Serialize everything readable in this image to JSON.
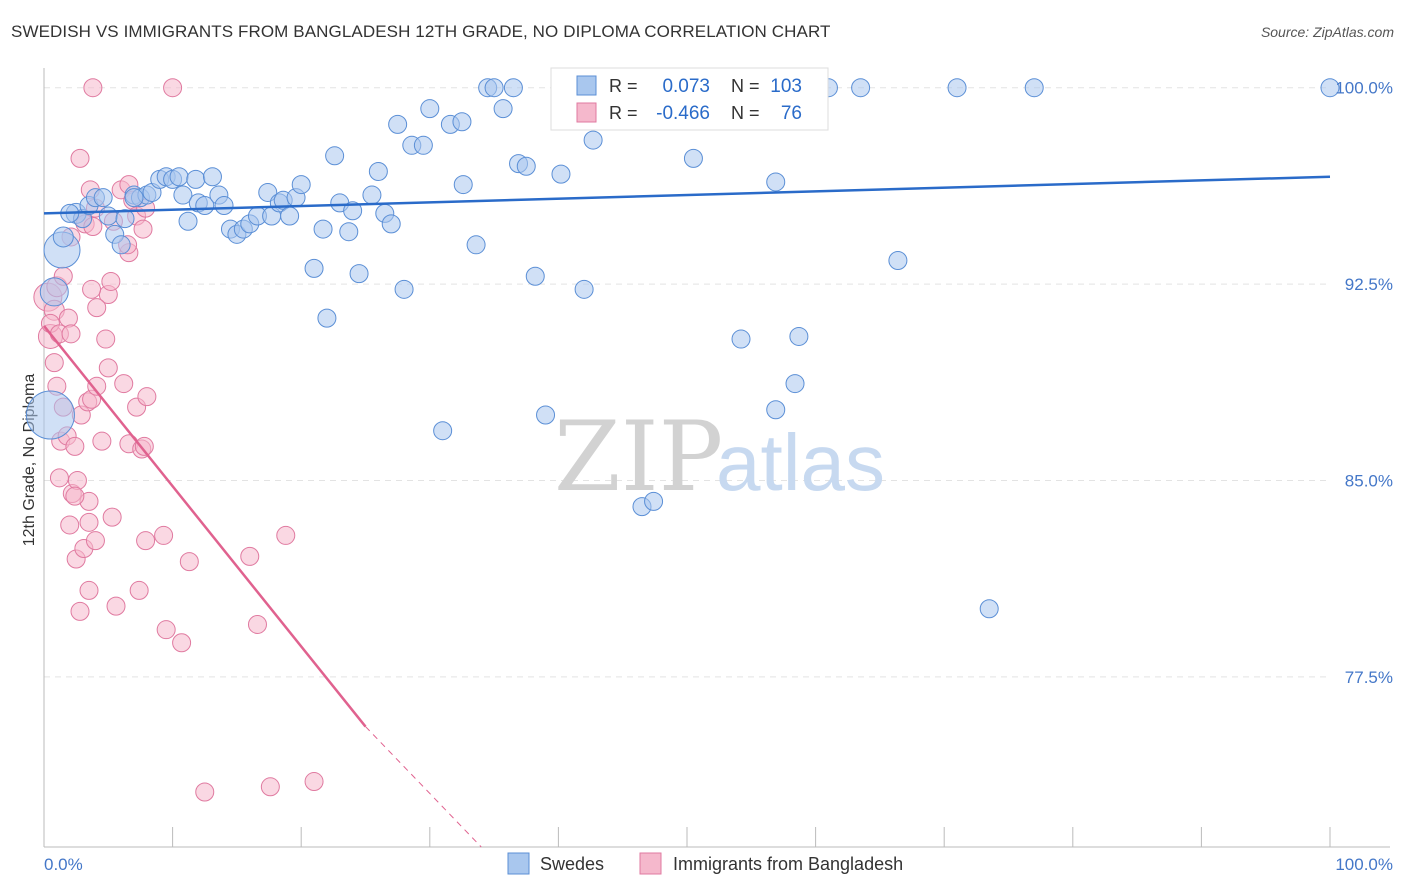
{
  "title": "SWEDISH VS IMMIGRANTS FROM BANGLADESH 12TH GRADE, NO DIPLOMA CORRELATION CHART",
  "source": "Source: ZipAtlas.com",
  "watermark": {
    "zip": "ZIP",
    "atlas": "atlas"
  },
  "colors": {
    "blue": "#5b8fd6",
    "blue_fill": "#a9c7ee",
    "blue_line": "#2a6bc9",
    "pink": "#e07aa0",
    "pink_fill": "#f5b8cc",
    "pink_line": "#e0628f",
    "axis_text": "#4477c8",
    "grid": "#e3e3e3"
  },
  "legend_box": {
    "rows": [
      {
        "r_label": "R =",
        "r_value": "0.073",
        "n_label": "N =",
        "n_value": "103"
      },
      {
        "r_label": "R =",
        "r_value": "-0.466",
        "n_label": "N =",
        "n_value": "76"
      }
    ]
  },
  "legend_bottom": [
    "Swedes",
    "Immigrants from Bangladesh"
  ],
  "chart_data": {
    "type": "scatter",
    "title": "SWEDISH VS IMMIGRANTS FROM BANGLADESH 12TH GRADE, NO DIPLOMA CORRELATION CHART",
    "xlabel": "",
    "ylabel": "12th Grade, No Diploma",
    "xlim": [
      0,
      100
    ],
    "ylim": [
      71.0,
      100.6
    ],
    "x_tick_labels": [
      "0.0%",
      "100.0%"
    ],
    "y_ticks": [
      77.5,
      85.0,
      92.5,
      100.0
    ],
    "y_tick_labels": [
      "77.5%",
      "85.0%",
      "92.5%",
      "100.0%"
    ],
    "grid": true,
    "legend_position": "top-center",
    "series": [
      {
        "name": "Swedes",
        "r": 0.073,
        "n": 103,
        "trend": {
          "x": [
            0,
            100
          ],
          "y": [
            95.2,
            96.6
          ]
        },
        "points": [
          [
            1.4,
            93.8,
            18
          ],
          [
            0.5,
            87.5,
            24
          ],
          [
            0.8,
            92.2,
            14
          ],
          [
            1.5,
            94.3,
            10
          ],
          [
            2.5,
            95.2,
            10
          ],
          [
            3.0,
            95.0,
            9
          ],
          [
            3.5,
            95.5,
            9
          ],
          [
            4.0,
            95.8,
            9
          ],
          [
            4.6,
            95.8,
            9
          ],
          [
            5.0,
            95.1,
            9
          ],
          [
            5.5,
            94.4,
            9
          ],
          [
            6.0,
            94.0,
            9
          ],
          [
            6.3,
            95.0,
            9
          ],
          [
            7.0,
            95.9,
            9
          ],
          [
            7.5,
            95.8,
            9
          ],
          [
            8.0,
            95.9,
            9
          ],
          [
            8.4,
            96.0,
            9
          ],
          [
            9.0,
            96.5,
            9
          ],
          [
            9.5,
            96.6,
            9
          ],
          [
            10.0,
            96.5,
            9
          ],
          [
            10.5,
            96.6,
            9
          ],
          [
            10.8,
            95.9,
            9
          ],
          [
            11.2,
            94.9,
            9
          ],
          [
            11.8,
            96.5,
            9
          ],
          [
            12.0,
            95.6,
            9
          ],
          [
            12.5,
            95.5,
            9
          ],
          [
            13.1,
            96.6,
            9
          ],
          [
            13.6,
            95.9,
            9
          ],
          [
            14.0,
            95.5,
            9
          ],
          [
            14.5,
            94.6,
            9
          ],
          [
            15.0,
            94.4,
            9
          ],
          [
            15.5,
            94.6,
            9
          ],
          [
            16.0,
            94.8,
            9
          ],
          [
            16.6,
            95.1,
            9
          ],
          [
            17.4,
            96.0,
            9
          ],
          [
            17.7,
            95.1,
            9
          ],
          [
            18.3,
            95.6,
            9
          ],
          [
            18.6,
            95.7,
            9
          ],
          [
            19.1,
            95.1,
            9
          ],
          [
            19.6,
            95.8,
            9
          ],
          [
            20.0,
            96.3,
            9
          ],
          [
            21.0,
            93.1,
            9
          ],
          [
            21.7,
            94.6,
            9
          ],
          [
            22.0,
            91.2,
            9
          ],
          [
            22.6,
            97.4,
            9
          ],
          [
            23.0,
            95.6,
            9
          ],
          [
            23.7,
            94.5,
            9
          ],
          [
            24.0,
            95.3,
            9
          ],
          [
            24.5,
            92.9,
            9
          ],
          [
            25.5,
            95.9,
            9
          ],
          [
            26.0,
            96.8,
            9
          ],
          [
            26.5,
            95.2,
            9
          ],
          [
            27.0,
            94.8,
            9
          ],
          [
            27.5,
            98.6,
            9
          ],
          [
            28.0,
            92.3,
            9
          ],
          [
            28.6,
            97.8,
            9
          ],
          [
            29.5,
            97.8,
            9
          ],
          [
            30.0,
            99.2,
            9
          ],
          [
            31.0,
            86.9,
            9
          ],
          [
            31.6,
            98.6,
            9
          ],
          [
            32.5,
            98.7,
            9
          ],
          [
            32.6,
            96.3,
            9
          ],
          [
            33.6,
            94.0,
            9
          ],
          [
            34.5,
            100.0,
            9
          ],
          [
            35.0,
            100.0,
            9
          ],
          [
            35.7,
            99.2,
            9
          ],
          [
            36.5,
            100.0,
            9
          ],
          [
            36.9,
            97.1,
            9
          ],
          [
            37.5,
            97.0,
            9
          ],
          [
            38.2,
            92.8,
            9
          ],
          [
            39.0,
            87.5,
            9
          ],
          [
            40.2,
            96.7,
            9
          ],
          [
            41.0,
            100.0,
            9
          ],
          [
            41.5,
            100.0,
            9
          ],
          [
            42.0,
            92.3,
            9
          ],
          [
            42.7,
            98.0,
            9
          ],
          [
            43.5,
            100.0,
            9
          ],
          [
            45.7,
            100.0,
            9
          ],
          [
            46.5,
            84.0,
            9
          ],
          [
            47.2,
            100.0,
            9
          ],
          [
            47.4,
            84.2,
            9
          ],
          [
            50.0,
            100.0,
            9
          ],
          [
            50.5,
            97.3,
            9
          ],
          [
            53.0,
            100.0,
            9
          ],
          [
            54.2,
            90.4,
            9
          ],
          [
            56.0,
            100.0,
            9
          ],
          [
            56.9,
            87.7,
            9
          ],
          [
            56.9,
            96.4,
            9
          ],
          [
            58.4,
            88.7,
            9
          ],
          [
            58.7,
            90.5,
            9
          ],
          [
            61.0,
            100.0,
            9
          ],
          [
            63.5,
            100.0,
            9
          ],
          [
            66.4,
            93.4,
            9
          ],
          [
            71.0,
            100.0,
            9
          ],
          [
            73.5,
            80.1,
            9
          ],
          [
            77.0,
            100.0,
            9
          ],
          [
            100.0,
            100.0,
            9
          ],
          [
            7.0,
            95.8,
            9
          ],
          [
            2.0,
            95.2,
            9
          ]
        ]
      },
      {
        "name": "Immigrants from Bangladesh",
        "r": -0.466,
        "n": 76,
        "trend": {
          "x": [
            0,
            25
          ],
          "y": [
            90.9,
            75.6
          ]
        },
        "trend_dashed": {
          "x": [
            25,
            34
          ],
          "y": [
            75.6,
            71.0
          ]
        },
        "points": [
          [
            0.3,
            92.0,
            14
          ],
          [
            0.5,
            90.5,
            12
          ],
          [
            0.8,
            91.5,
            10
          ],
          [
            1.0,
            92.4,
            10
          ],
          [
            0.5,
            91.0,
            9
          ],
          [
            1.2,
            90.6,
            9
          ],
          [
            0.8,
            89.5,
            9
          ],
          [
            1.5,
            92.8,
            9
          ],
          [
            1.9,
            91.2,
            9
          ],
          [
            2.1,
            90.6,
            9
          ],
          [
            1.0,
            88.6,
            9
          ],
          [
            1.5,
            87.8,
            9
          ],
          [
            1.3,
            86.5,
            9
          ],
          [
            1.8,
            86.7,
            9
          ],
          [
            1.2,
            85.1,
            9
          ],
          [
            2.4,
            86.3,
            9
          ],
          [
            2.2,
            84.5,
            9
          ],
          [
            2.6,
            85.0,
            9
          ],
          [
            2.0,
            83.3,
            9
          ],
          [
            2.5,
            82.0,
            9
          ],
          [
            3.1,
            82.4,
            9
          ],
          [
            3.5,
            83.4,
            9
          ],
          [
            3.5,
            84.2,
            9
          ],
          [
            4.0,
            82.7,
            9
          ],
          [
            3.5,
            80.8,
            9
          ],
          [
            2.8,
            80.0,
            9
          ],
          [
            2.4,
            84.4,
            9
          ],
          [
            2.9,
            87.5,
            9
          ],
          [
            3.4,
            88.0,
            9
          ],
          [
            3.7,
            88.1,
            9
          ],
          [
            4.1,
            88.6,
            9
          ],
          [
            4.5,
            86.5,
            9
          ],
          [
            5.0,
            89.3,
            9
          ],
          [
            5.3,
            83.6,
            9
          ],
          [
            5.6,
            80.2,
            9
          ],
          [
            6.2,
            88.7,
            9
          ],
          [
            6.6,
            86.4,
            9
          ],
          [
            7.2,
            87.8,
            9
          ],
          [
            7.6,
            86.2,
            9
          ],
          [
            7.9,
            82.7,
            9
          ],
          [
            7.4,
            80.8,
            9
          ],
          [
            8.0,
            88.2,
            9
          ],
          [
            7.8,
            86.3,
            9
          ],
          [
            9.3,
            82.9,
            9
          ],
          [
            9.5,
            79.3,
            9
          ],
          [
            10.7,
            78.8,
            9
          ],
          [
            11.3,
            81.9,
            9
          ],
          [
            12.5,
            73.1,
            9
          ],
          [
            16.0,
            82.1,
            9
          ],
          [
            16.6,
            79.5,
            9
          ],
          [
            17.6,
            73.3,
            9
          ],
          [
            18.8,
            82.9,
            9
          ],
          [
            21.0,
            73.5,
            9
          ],
          [
            2.8,
            97.3,
            9
          ],
          [
            3.6,
            96.1,
            9
          ],
          [
            3.0,
            95.0,
            9
          ],
          [
            4.0,
            95.4,
            9
          ],
          [
            3.2,
            94.8,
            9
          ],
          [
            3.8,
            94.7,
            9
          ],
          [
            5.0,
            92.1,
            9
          ],
          [
            5.4,
            94.9,
            9
          ],
          [
            6.0,
            96.1,
            9
          ],
          [
            6.6,
            96.3,
            9
          ],
          [
            6.9,
            95.7,
            9
          ],
          [
            7.2,
            95.1,
            9
          ],
          [
            7.7,
            94.6,
            9
          ],
          [
            6.6,
            93.7,
            9
          ],
          [
            6.5,
            94.0,
            9
          ],
          [
            7.9,
            95.4,
            9
          ],
          [
            3.7,
            92.3,
            9
          ],
          [
            4.1,
            91.6,
            9
          ],
          [
            4.8,
            90.4,
            9
          ],
          [
            5.2,
            92.6,
            9
          ],
          [
            3.8,
            100.0,
            9
          ],
          [
            10.0,
            100.0,
            9
          ],
          [
            2.1,
            94.3,
            9
          ]
        ]
      }
    ]
  }
}
